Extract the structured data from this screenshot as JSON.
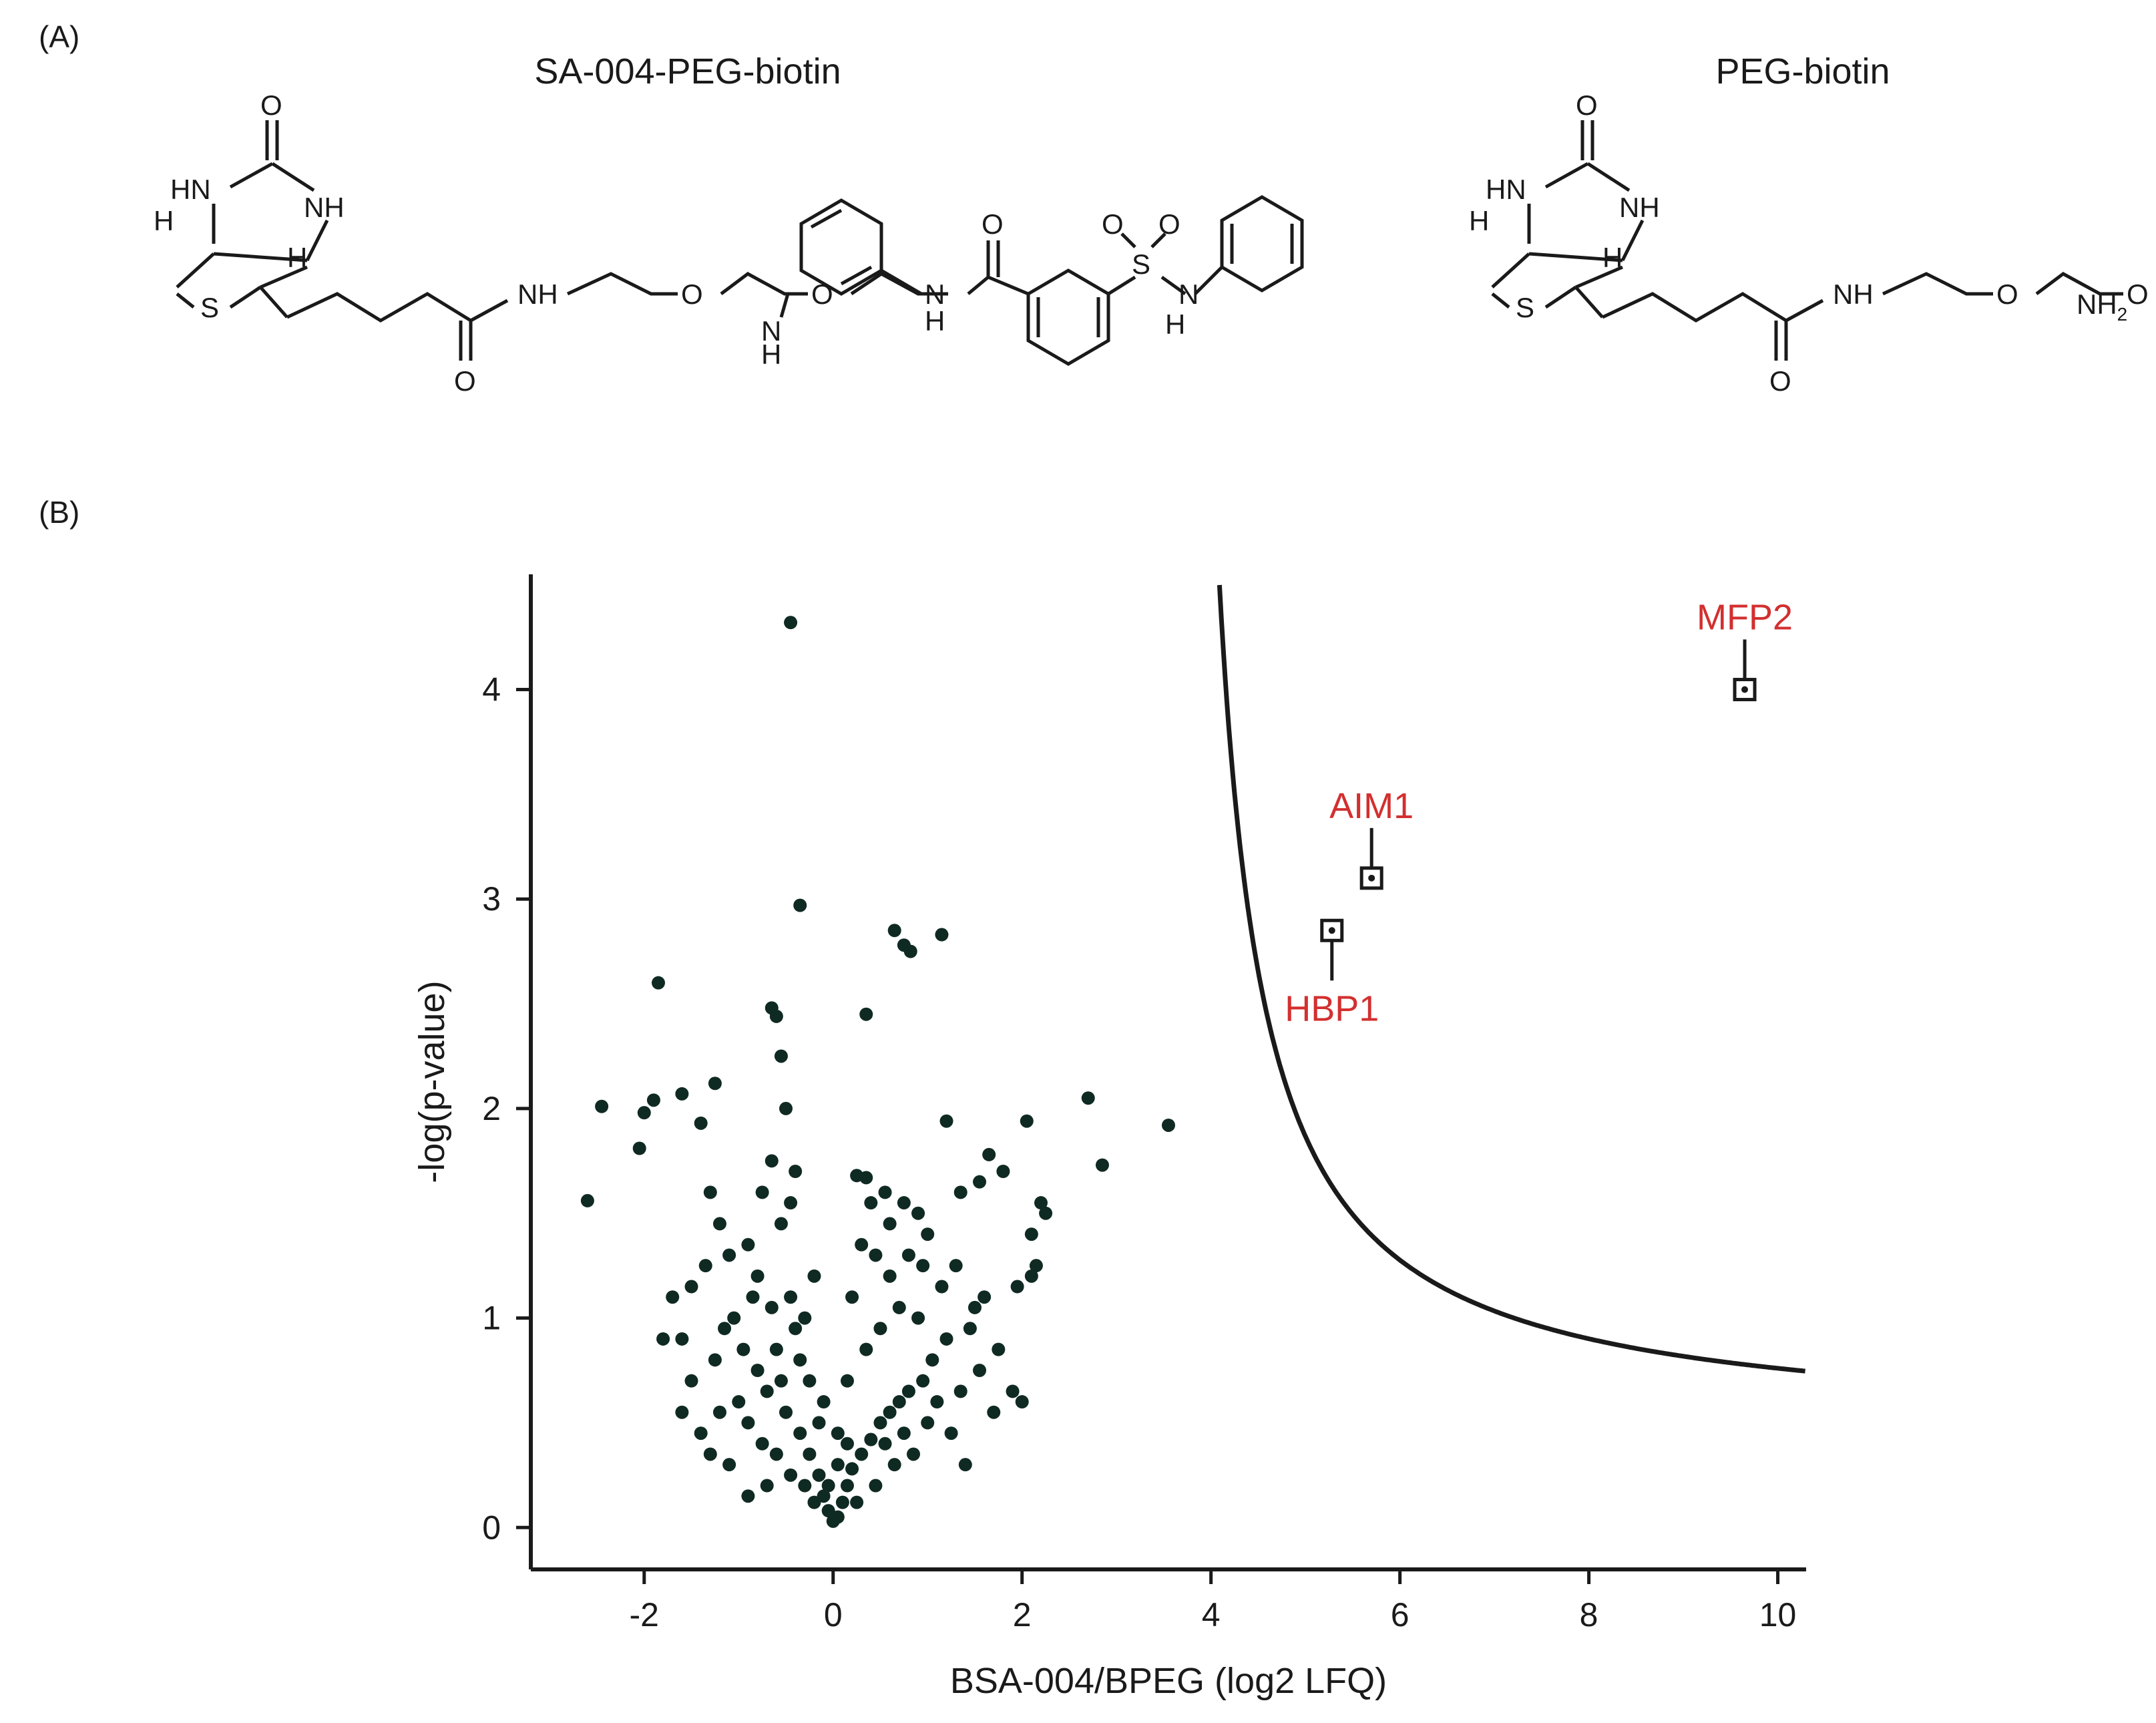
{
  "panels": {
    "a_label": "(A)",
    "b_label": "(B)"
  },
  "structures": {
    "left_title": "SA-004-PEG-biotin",
    "right_title": "PEG-biotin",
    "atoms": {
      "O": "O",
      "HN": "HN",
      "NH": "NH",
      "H": "H",
      "S": "S",
      "N": "N",
      "NH2": "NH",
      "sub2": "2"
    }
  },
  "chart_data": {
    "type": "scatter",
    "xlabel": "BSA-004/BPEG (log2 LFQ)",
    "ylabel": "-log(p-value)",
    "xlim": [
      -3.2,
      10.3
    ],
    "ylim": [
      -0.2,
      4.55
    ],
    "xticks": [
      -2,
      0,
      2,
      4,
      6,
      8,
      10
    ],
    "yticks": [
      0,
      1,
      2,
      3,
      4
    ],
    "xtick_labels": [
      "-2",
      "0",
      "2",
      "4",
      "6",
      "8",
      "10"
    ],
    "ytick_labels": [
      "0",
      "1",
      "2",
      "3",
      "4"
    ],
    "point_color": "#0f2a22",
    "highlight_color": "#d32f2f",
    "threshold_curve": {
      "description_shape": "hyperbola",
      "x0": 3.6,
      "y_at_10": 0.76,
      "x_start": 3.65
    },
    "points": [
      [
        -0.45,
        4.32
      ],
      [
        -0.35,
        2.97
      ],
      [
        -1.85,
        2.6
      ],
      [
        0.65,
        2.85
      ],
      [
        0.75,
        2.78
      ],
      [
        0.82,
        2.75
      ],
      [
        1.15,
        2.83
      ],
      [
        -0.65,
        2.48
      ],
      [
        -0.6,
        2.44
      ],
      [
        0.35,
        2.45
      ],
      [
        -1.25,
        2.12
      ],
      [
        -1.9,
        2.04
      ],
      [
        -2.0,
        1.98
      ],
      [
        -2.45,
        2.01
      ],
      [
        -0.5,
        2.0
      ],
      [
        -1.6,
        2.07
      ],
      [
        -1.4,
        1.93
      ],
      [
        -2.05,
        1.81
      ],
      [
        -2.6,
        1.56
      ],
      [
        2.05,
        1.94
      ],
      [
        2.7,
        2.05
      ],
      [
        3.55,
        1.92
      ],
      [
        2.85,
        1.73
      ],
      [
        1.2,
        1.94
      ],
      [
        -0.55,
        2.25
      ],
      [
        -0.4,
        1.7
      ],
      [
        -0.65,
        1.75
      ],
      [
        -0.75,
        1.6
      ],
      [
        -1.3,
        1.6
      ],
      [
        -1.2,
        1.45
      ],
      [
        -1.35,
        1.25
      ],
      [
        -1.5,
        1.15
      ],
      [
        -1.7,
        1.1
      ],
      [
        -1.6,
        0.9
      ],
      [
        -1.8,
        0.9
      ],
      [
        -1.1,
        1.3
      ],
      [
        -0.9,
        1.35
      ],
      [
        -0.55,
        1.45
      ],
      [
        -0.45,
        1.55
      ],
      [
        0.25,
        1.68
      ],
      [
        0.35,
        1.67
      ],
      [
        0.55,
        1.6
      ],
      [
        0.75,
        1.55
      ],
      [
        0.9,
        1.5
      ],
      [
        1.0,
        1.4
      ],
      [
        1.35,
        1.6
      ],
      [
        1.55,
        1.65
      ],
      [
        1.65,
        1.78
      ],
      [
        1.8,
        1.7
      ],
      [
        2.2,
        1.55
      ],
      [
        2.25,
        1.5
      ],
      [
        2.1,
        1.4
      ],
      [
        2.15,
        1.25
      ],
      [
        1.95,
        1.15
      ],
      [
        2.1,
        1.2
      ],
      [
        1.6,
        1.1
      ],
      [
        1.5,
        1.05
      ],
      [
        1.45,
        0.95
      ],
      [
        1.75,
        0.85
      ],
      [
        1.9,
        0.65
      ],
      [
        2.0,
        0.6
      ],
      [
        1.7,
        0.55
      ],
      [
        1.4,
        0.3
      ],
      [
        1.2,
        0.9
      ],
      [
        1.05,
        0.8
      ],
      [
        0.9,
        1.0
      ],
      [
        0.6,
        1.2
      ],
      [
        0.45,
        1.3
      ],
      [
        0.3,
        1.35
      ],
      [
        0.2,
        1.1
      ],
      [
        -0.2,
        1.2
      ],
      [
        -0.3,
        1.0
      ],
      [
        -0.4,
        0.95
      ],
      [
        -0.6,
        0.85
      ],
      [
        -0.8,
        0.75
      ],
      [
        -1.0,
        0.6
      ],
      [
        -1.2,
        0.55
      ],
      [
        -1.4,
        0.45
      ],
      [
        -1.3,
        0.35
      ],
      [
        -1.1,
        0.3
      ],
      [
        -0.9,
        0.5
      ],
      [
        -0.75,
        0.4
      ],
      [
        -0.6,
        0.35
      ],
      [
        -0.5,
        0.55
      ],
      [
        -0.35,
        0.45
      ],
      [
        -0.25,
        0.35
      ],
      [
        -0.15,
        0.25
      ],
      [
        -0.1,
        0.15
      ],
      [
        -0.05,
        0.08
      ],
      [
        0.0,
        0.03
      ],
      [
        0.05,
        0.05
      ],
      [
        0.1,
        0.12
      ],
      [
        0.15,
        0.2
      ],
      [
        0.2,
        0.28
      ],
      [
        0.3,
        0.35
      ],
      [
        0.4,
        0.42
      ],
      [
        0.5,
        0.5
      ],
      [
        0.6,
        0.55
      ],
      [
        0.7,
        0.6
      ],
      [
        0.8,
        0.65
      ],
      [
        0.95,
        0.7
      ],
      [
        1.1,
        0.6
      ],
      [
        1.25,
        0.45
      ],
      [
        0.85,
        0.35
      ],
      [
        0.65,
        0.3
      ],
      [
        0.45,
        0.2
      ],
      [
        0.25,
        0.12
      ],
      [
        -0.2,
        0.12
      ],
      [
        -0.3,
        0.2
      ],
      [
        -0.45,
        0.25
      ],
      [
        -0.7,
        0.2
      ],
      [
        -0.9,
        0.15
      ],
      [
        -0.55,
        0.7
      ],
      [
        -0.7,
        0.65
      ],
      [
        -0.95,
        0.85
      ],
      [
        -1.05,
        1.0
      ],
      [
        -1.15,
        0.95
      ],
      [
        -0.85,
        1.1
      ],
      [
        0.5,
        0.95
      ],
      [
        0.7,
        1.05
      ],
      [
        0.35,
        0.85
      ],
      [
        0.15,
        0.7
      ],
      [
        -0.1,
        0.6
      ],
      [
        -0.25,
        0.7
      ],
      [
        0.05,
        0.45
      ],
      [
        -0.15,
        0.5
      ],
      [
        1.3,
        1.25
      ],
      [
        1.15,
        1.15
      ],
      [
        0.95,
        1.25
      ],
      [
        0.8,
        1.3
      ],
      [
        0.4,
        1.55
      ],
      [
        0.6,
        1.45
      ],
      [
        -0.8,
        1.2
      ],
      [
        -0.65,
        1.05
      ],
      [
        -1.5,
        0.7
      ],
      [
        -1.25,
        0.8
      ],
      [
        -1.6,
        0.55
      ],
      [
        0.05,
        0.3
      ],
      [
        -0.05,
        0.2
      ],
      [
        0.15,
        0.4
      ],
      [
        1.55,
        0.75
      ],
      [
        1.35,
        0.65
      ],
      [
        1.0,
        0.5
      ],
      [
        0.75,
        0.45
      ],
      [
        0.55,
        0.4
      ],
      [
        -0.35,
        0.8
      ],
      [
        -0.45,
        1.1
      ]
    ],
    "highlights": [
      {
        "name": "MFP2",
        "x": 9.65,
        "y": 4.0,
        "label_pos": "above"
      },
      {
        "name": "AIM1",
        "x": 5.7,
        "y": 3.1,
        "label_pos": "above"
      },
      {
        "name": "HBP1",
        "x": 5.28,
        "y": 2.85,
        "label_pos": "below"
      }
    ]
  }
}
